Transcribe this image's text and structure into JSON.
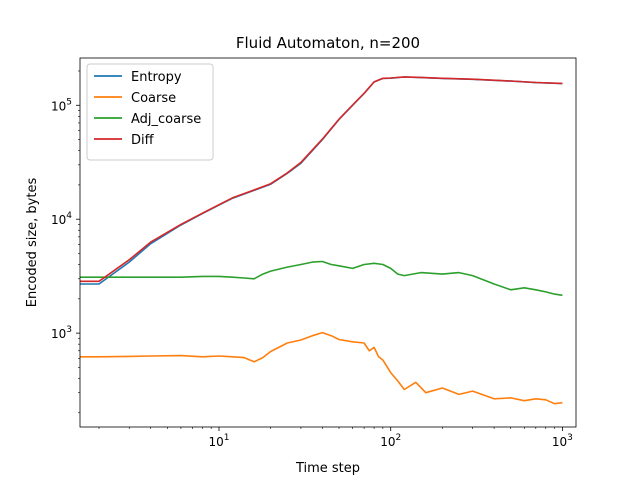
{
  "chart_data": {
    "type": "line",
    "title": "Fluid Automaton, n=200",
    "xlabel": "Time step",
    "ylabel": "Encoded size, bytes",
    "xscale": "log",
    "yscale": "log",
    "xlim": [
      1.55,
      1200
    ],
    "ylim": [
      150,
      260000
    ],
    "xticks": [
      {
        "value": 10,
        "base": "10",
        "exp": "1"
      },
      {
        "value": 100,
        "base": "10",
        "exp": "2"
      },
      {
        "value": 1000,
        "base": "10",
        "exp": "3"
      }
    ],
    "yticks": [
      {
        "value": 1000,
        "base": "10",
        "exp": "3"
      },
      {
        "value": 10000,
        "base": "10",
        "exp": "4"
      },
      {
        "value": 100000,
        "base": "10",
        "exp": "5"
      }
    ],
    "legend_position": "top-left",
    "grid": false,
    "series": [
      {
        "name": "Entropy",
        "color": "#1f77b4",
        "x": [
          1.55,
          2,
          3,
          4,
          6,
          8,
          10,
          12,
          15,
          20,
          25,
          30,
          40,
          50,
          60,
          70,
          80,
          90,
          100,
          120,
          150,
          200,
          300,
          500,
          700,
          1000
        ],
        "y": [
          2700,
          2700,
          4200,
          6100,
          8900,
          11200,
          13300,
          15300,
          17300,
          20300,
          25300,
          31000,
          50000,
          75000,
          100000,
          127000,
          160000,
          172000,
          173000,
          177000,
          175000,
          172000,
          169000,
          163000,
          158000,
          155000
        ]
      },
      {
        "name": "Coarse",
        "color": "#ff7f0e",
        "x": [
          1.55,
          2,
          3,
          4,
          6,
          8,
          10,
          12,
          14,
          16,
          18,
          20,
          25,
          30,
          35,
          40,
          45,
          50,
          60,
          70,
          75,
          80,
          85,
          90,
          100,
          110,
          120,
          140,
          160,
          200,
          250,
          300,
          400,
          500,
          600,
          700,
          800,
          900,
          1000
        ],
        "y": [
          620,
          620,
          625,
          630,
          635,
          620,
          630,
          620,
          610,
          560,
          610,
          690,
          820,
          870,
          950,
          1010,
          950,
          880,
          840,
          820,
          700,
          750,
          620,
          580,
          450,
          380,
          320,
          370,
          300,
          330,
          290,
          310,
          265,
          270,
          255,
          265,
          260,
          240,
          245
        ]
      },
      {
        "name": "Adj_coarse",
        "color": "#2ca02c",
        "x": [
          1.55,
          2,
          3,
          4,
          6,
          8,
          10,
          12,
          14,
          16,
          18,
          20,
          25,
          30,
          35,
          40,
          45,
          50,
          60,
          70,
          80,
          90,
          100,
          110,
          120,
          150,
          200,
          250,
          300,
          400,
          500,
          600,
          700,
          800,
          900,
          1000
        ],
        "y": [
          3100,
          3100,
          3100,
          3100,
          3100,
          3150,
          3150,
          3100,
          3050,
          3000,
          3300,
          3500,
          3800,
          4000,
          4200,
          4250,
          4000,
          3900,
          3700,
          4000,
          4100,
          4000,
          3700,
          3300,
          3200,
          3400,
          3300,
          3400,
          3200,
          2700,
          2400,
          2500,
          2400,
          2300,
          2200,
          2150
        ]
      },
      {
        "name": "Diff",
        "color": "#d62728",
        "x": [
          1.55,
          2,
          3,
          4,
          6,
          8,
          10,
          12,
          15,
          20,
          25,
          30,
          40,
          50,
          60,
          70,
          80,
          90,
          100,
          120,
          150,
          200,
          300,
          500,
          700,
          1000
        ],
        "y": [
          2850,
          2850,
          4400,
          6300,
          9000,
          11300,
          13400,
          15400,
          17400,
          20500,
          25500,
          31500,
          50500,
          75500,
          100500,
          127500,
          160500,
          172500,
          173500,
          177500,
          175500,
          172500,
          169500,
          163500,
          158500,
          155500
        ]
      }
    ]
  }
}
